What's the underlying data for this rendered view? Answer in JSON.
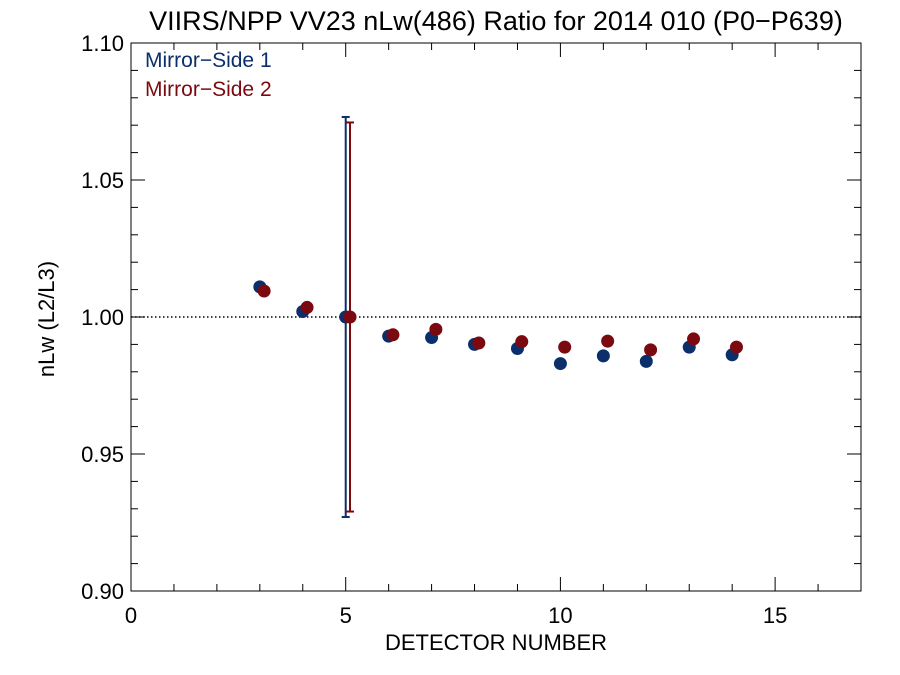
{
  "chart_data": {
    "type": "scatter",
    "title": "VIIRS/NPP VV23 nLw(486) Ratio for 2014 010 (P0−P639)",
    "xlabel": "DETECTOR NUMBER",
    "ylabel": "nLw (L2/L3)",
    "xlim": [
      0,
      17
    ],
    "ylim": [
      0.9,
      1.1
    ],
    "x_ticks": [
      0,
      5,
      10,
      15
    ],
    "x_tick_labels": [
      "0",
      "5",
      "10",
      "15"
    ],
    "y_ticks": [
      0.9,
      0.95,
      1.0,
      1.05,
      1.1
    ],
    "y_tick_labels": [
      "0.90",
      "0.95",
      "1.00",
      "1.05",
      "1.10"
    ],
    "reference_line": 1.0,
    "legend_position": "top-left",
    "series": [
      {
        "name": "Mirror−Side 1",
        "color": "#0b2f6b",
        "x": [
          3,
          4,
          5,
          6,
          7,
          8,
          9,
          10,
          11,
          12,
          13,
          14
        ],
        "y": [
          1.011,
          1.002,
          1.0,
          0.993,
          0.9925,
          0.99,
          0.9885,
          0.983,
          0.9858,
          0.9838,
          0.989,
          0.9862
        ],
        "error_bar": {
          "x": 5,
          "low": 0.927,
          "high": 1.073
        }
      },
      {
        "name": "Mirror−Side 2",
        "color": "#7a0a10",
        "x": [
          3.1,
          4.1,
          5.1,
          6.1,
          7.1,
          8.1,
          9.1,
          10.1,
          11.1,
          12.1,
          13.1,
          14.1
        ],
        "y": [
          1.0095,
          1.0035,
          1.0,
          0.9935,
          0.9955,
          0.9905,
          0.991,
          0.989,
          0.9912,
          0.988,
          0.992,
          0.989
        ],
        "error_bar": {
          "x": 5.1,
          "low": 0.929,
          "high": 1.071
        }
      }
    ]
  }
}
